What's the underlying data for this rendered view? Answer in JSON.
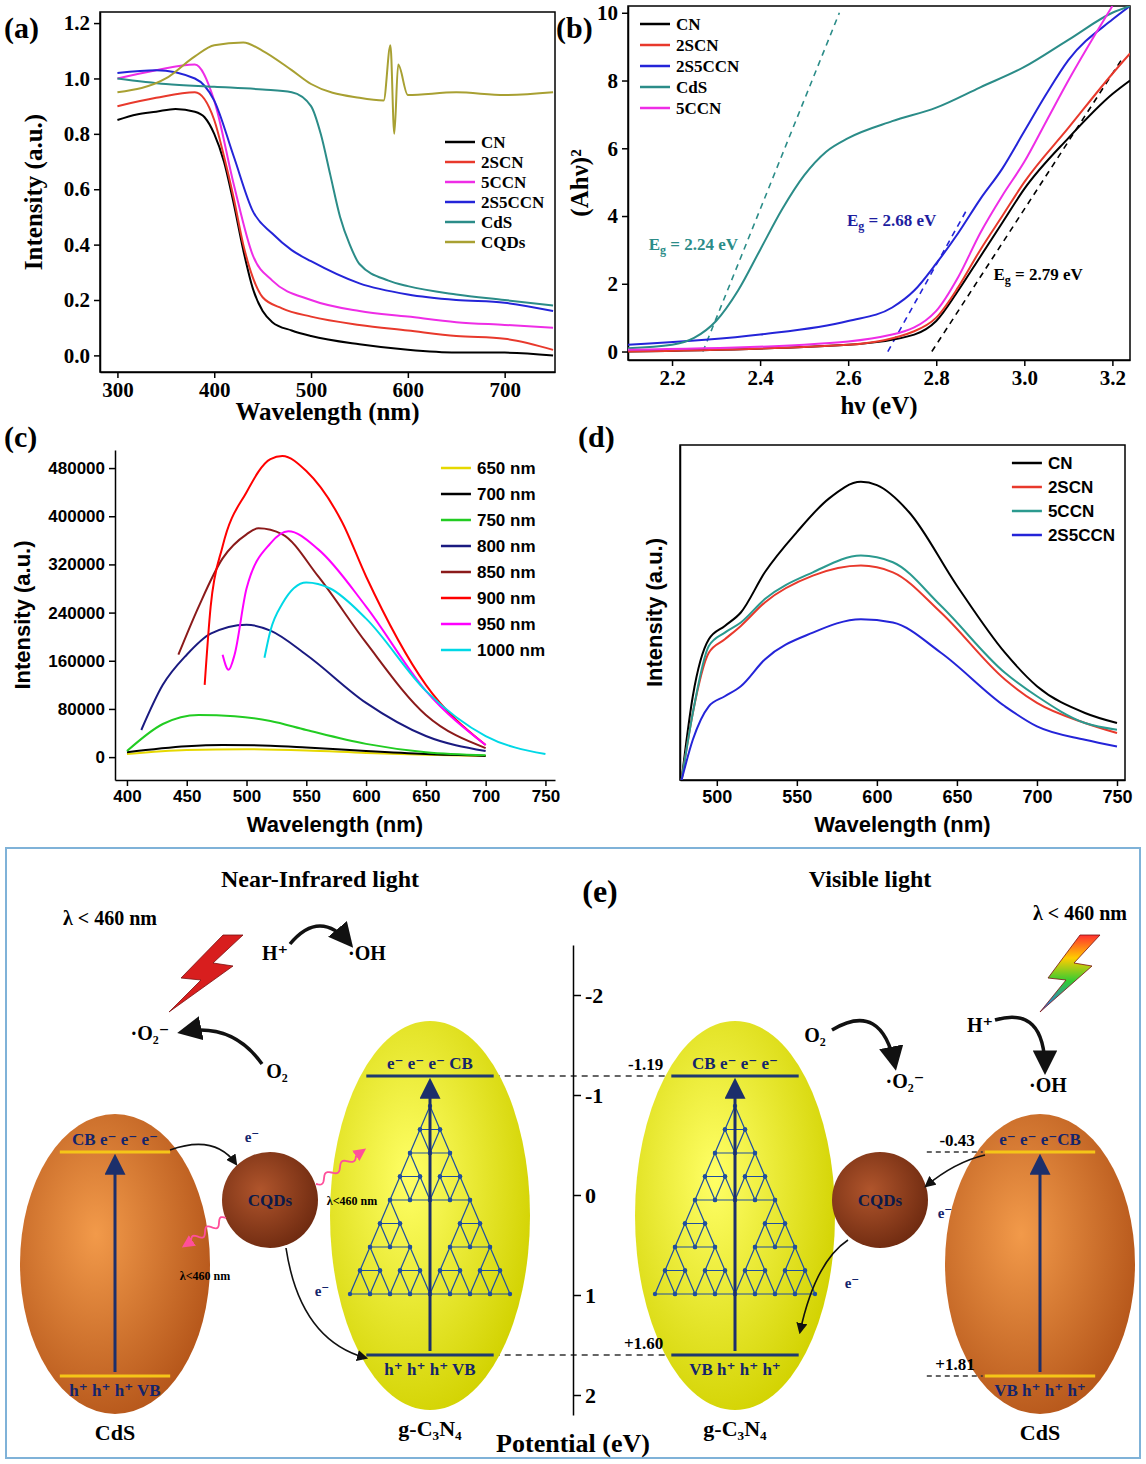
{
  "chart_data": [
    {
      "type": "line",
      "title": "(a)",
      "x_label": "Wavelength (nm)",
      "y_label": "Intensity (a.u.)",
      "xlim": [
        282,
        752
      ],
      "xticks": [
        300,
        400,
        500,
        600,
        700
      ],
      "ylim": [
        -0.06,
        1.24
      ],
      "yticks": [
        {
          "value": 0,
          "label": "0.0"
        },
        0.2,
        0.4,
        0.6,
        0.8,
        {
          "value": 1,
          "label": "1.0"
        },
        1.2
      ],
      "legend": "right",
      "series": [
        {
          "name": "CN",
          "color": "#000000",
          "x": [
            300,
            320,
            340,
            360,
            380,
            390,
            400,
            410,
            420,
            430,
            440,
            450,
            460,
            480,
            500,
            550,
            600,
            650,
            700,
            750
          ],
          "values": [
            0.85,
            0.87,
            0.88,
            0.89,
            0.88,
            0.86,
            0.8,
            0.7,
            0.55,
            0.38,
            0.24,
            0.16,
            0.12,
            0.09,
            0.07,
            0.04,
            0.02,
            0.01,
            0.01,
            0.0
          ]
        },
        {
          "name": "2SCN",
          "color": "#e8392c",
          "x": [
            300,
            340,
            380,
            400,
            410,
            420,
            430,
            440,
            450,
            470,
            500,
            550,
            600,
            650,
            700,
            750
          ],
          "values": [
            0.9,
            0.93,
            0.95,
            0.85,
            0.72,
            0.57,
            0.4,
            0.28,
            0.21,
            0.17,
            0.14,
            0.11,
            0.09,
            0.07,
            0.06,
            0.02
          ]
        },
        {
          "name": "5CCN",
          "color": "#ee2de6",
          "x": [
            300,
            340,
            380,
            400,
            420,
            440,
            460,
            500,
            550,
            600,
            650,
            700,
            750
          ],
          "values": [
            1.0,
            1.03,
            1.05,
            0.92,
            0.62,
            0.36,
            0.27,
            0.2,
            0.16,
            0.14,
            0.12,
            0.11,
            0.1
          ]
        },
        {
          "name": "2S5CCN",
          "color": "#2424d8",
          "x": [
            300,
            340,
            380,
            400,
            420,
            440,
            460,
            480,
            500,
            550,
            600,
            650,
            700,
            750
          ],
          "values": [
            1.02,
            1.03,
            1.0,
            0.92,
            0.72,
            0.52,
            0.44,
            0.38,
            0.34,
            0.26,
            0.22,
            0.2,
            0.19,
            0.16
          ]
        },
        {
          "name": "CdS",
          "color": "#2b8c88",
          "x": [
            300,
            350,
            400,
            450,
            480,
            500,
            510,
            520,
            530,
            540,
            550,
            580,
            600,
            650,
            700,
            750
          ],
          "values": [
            1.0,
            0.98,
            0.97,
            0.96,
            0.95,
            0.9,
            0.8,
            0.65,
            0.5,
            0.4,
            0.33,
            0.27,
            0.25,
            0.22,
            0.2,
            0.18
          ]
        },
        {
          "name": "CQDs",
          "color": "#a8a032",
          "x": [
            300,
            350,
            380,
            400,
            430,
            450,
            480,
            500,
            550,
            575,
            582,
            586,
            590,
            600,
            650,
            700,
            750
          ],
          "values": [
            0.95,
            1.0,
            1.08,
            1.12,
            1.13,
            1.1,
            1.03,
            0.98,
            0.93,
            0.92,
            1.12,
            0.8,
            1.05,
            0.94,
            0.95,
            0.94,
            0.95
          ]
        }
      ]
    },
    {
      "type": "line",
      "title": "(b)",
      "x_label": "hν (eV)",
      "y_label": "(Ahν)²",
      "xlim": [
        2.1,
        3.24
      ],
      "xticks": [
        2.2,
        2.4,
        2.6,
        2.8,
        {
          "value": 3,
          "label": "3.0"
        },
        3.2
      ],
      "ylim": [
        -0.25,
        10.2
      ],
      "yticks": [
        0,
        2,
        4,
        6,
        8,
        10
      ],
      "legend": "upper left",
      "series": [
        {
          "name": "CN",
          "color": "#000000",
          "x": [
            2.1,
            2.6,
            2.75,
            2.8,
            2.85,
            2.9,
            2.95,
            3.0,
            3.1,
            3.2,
            3.24
          ],
          "values": [
            0.0,
            0.2,
            0.5,
            0.9,
            1.8,
            2.8,
            3.8,
            4.8,
            6.3,
            7.6,
            8.0
          ]
        },
        {
          "name": "2SCN",
          "color": "#e8392c",
          "x": [
            2.1,
            2.6,
            2.75,
            2.8,
            2.85,
            2.9,
            2.95,
            3.0,
            3.1,
            3.2,
            3.24
          ],
          "values": [
            0.0,
            0.2,
            0.6,
            1.0,
            1.9,
            3.0,
            4.0,
            5.0,
            6.6,
            8.2,
            8.8
          ]
        },
        {
          "name": "2S5CCN",
          "color": "#2424d8",
          "x": [
            2.1,
            2.4,
            2.6,
            2.7,
            2.75,
            2.8,
            2.85,
            2.9,
            2.95,
            3.0,
            3.05,
            3.1,
            3.2,
            3.24
          ],
          "values": [
            0.2,
            0.5,
            0.9,
            1.3,
            1.8,
            2.6,
            3.5,
            4.5,
            5.4,
            6.5,
            7.6,
            8.6,
            9.8,
            10.2
          ]
        },
        {
          "name": "CdS",
          "color": "#2b8c88",
          "x": [
            2.1,
            2.2,
            2.25,
            2.3,
            2.35,
            2.4,
            2.45,
            2.5,
            2.55,
            2.6,
            2.7,
            2.8,
            2.9,
            3.0,
            3.1,
            3.2,
            3.24
          ],
          "values": [
            0.1,
            0.2,
            0.4,
            0.9,
            1.8,
            3.0,
            4.2,
            5.2,
            5.9,
            6.3,
            6.8,
            7.2,
            7.8,
            8.4,
            9.2,
            10.0,
            10.2
          ]
        },
        {
          "name": "5CCN",
          "color": "#ee2de6",
          "x": [
            2.1,
            2.5,
            2.7,
            2.8,
            2.85,
            2.9,
            2.95,
            3.0,
            3.05,
            3.1,
            3.2
          ],
          "values": [
            0.05,
            0.2,
            0.5,
            1.2,
            2.2,
            3.5,
            4.6,
            5.6,
            6.8,
            8.0,
            10.2
          ]
        }
      ],
      "fits": [
        {
          "color": "#2b8c88",
          "line_style": "dashed",
          "x": [
            2.27,
            2.58
          ],
          "values": [
            0,
            10
          ]
        },
        {
          "color": "#2424d8",
          "line_style": "dashed",
          "x": [
            2.69,
            2.87
          ],
          "values": [
            0,
            4.2
          ]
        },
        {
          "color": "#000000",
          "line_style": "dashed",
          "x": [
            2.79,
            3.22
          ],
          "values": [
            0,
            8.6
          ]
        }
      ],
      "annotations": [
        {
          "text": "Eg = 2.24 eV",
          "color": "#2b8c88"
        },
        {
          "text": "Eg = 2.68 eV",
          "color": "#1e1ea0"
        },
        {
          "text": "Eg = 2.79 eV",
          "color": "#000000"
        }
      ]
    },
    {
      "type": "line",
      "title": "(c)",
      "x_label": "Wavelength (nm)",
      "y_label": "Intensity (a.u.)",
      "xlim": [
        390,
        758
      ],
      "xticks": [
        400,
        450,
        500,
        550,
        600,
        650,
        700,
        750
      ],
      "ylim": [
        -38000,
        510000
      ],
      "yticks": [
        0,
        80000,
        160000,
        240000,
        320000,
        400000,
        480000
      ],
      "legend": "upper right",
      "series": [
        {
          "name": "650 nm",
          "color": "#e6d800",
          "x": [
            400,
            450,
            500,
            550,
            600,
            650,
            700
          ],
          "values": [
            5000,
            12000,
            13000,
            11000,
            7000,
            4000,
            2000
          ]
        },
        {
          "name": "700 nm",
          "color": "#000000",
          "x": [
            400,
            450,
            480,
            520,
            550,
            600,
            650,
            700
          ],
          "values": [
            8000,
            18000,
            20000,
            19000,
            16000,
            10000,
            5000,
            2000
          ]
        },
        {
          "name": "750 nm",
          "color": "#22cc22",
          "x": [
            400,
            430,
            460,
            490,
            520,
            550,
            600,
            650,
            700
          ],
          "values": [
            10000,
            55000,
            70000,
            68000,
            60000,
            45000,
            22000,
            8000,
            3000
          ]
        },
        {
          "name": "800 nm",
          "color": "#1a1a80",
          "x": [
            412,
            430,
            450,
            470,
            500,
            520,
            550,
            600,
            650,
            700
          ],
          "values": [
            45000,
            120000,
            170000,
            205000,
            220000,
            210000,
            170000,
            90000,
            35000,
            10000
          ]
        },
        {
          "name": "850 nm",
          "color": "#8b1a1a",
          "x": [
            443,
            460,
            480,
            500,
            510,
            530,
            560,
            600,
            650,
            700
          ],
          "values": [
            170000,
            250000,
            330000,
            370000,
            380000,
            370000,
            300000,
            190000,
            70000,
            15000
          ]
        },
        {
          "name": "900 nm",
          "color": "#ff0000",
          "x": [
            465,
            470,
            480,
            500,
            520,
            530,
            550,
            580,
            600,
            650,
            700
          ],
          "values": [
            120000,
            250000,
            350000,
            440000,
            495000,
            500000,
            475000,
            390000,
            300000,
            120000,
            20000
          ]
        },
        {
          "name": "950 nm",
          "color": "#ff00ff",
          "x": [
            480,
            485,
            490,
            500,
            520,
            535,
            560,
            600,
            650,
            700
          ],
          "values": [
            170000,
            145000,
            170000,
            280000,
            355000,
            375000,
            345000,
            250000,
            110000,
            20000
          ]
        },
        {
          "name": "1000 nm",
          "color": "#00d8e6",
          "x": [
            515,
            520,
            530,
            550,
            570,
            600,
            650,
            700,
            750
          ],
          "values": [
            165000,
            210000,
            255000,
            290000,
            280000,
            230000,
            110000,
            35000,
            5000
          ]
        }
      ]
    },
    {
      "type": "line",
      "title": "(d)",
      "x_label": "Wavelength (nm)",
      "y_label": "Intensity (a.u.)",
      "xlim": [
        477,
        755
      ],
      "xticks": [
        500,
        550,
        600,
        650,
        700,
        750
      ],
      "ylim": [
        0,
        1
      ],
      "tick_labels": "x",
      "legend": "upper right",
      "series": [
        {
          "name": "CN",
          "color": "#000000",
          "x": [
            478,
            485,
            495,
            505,
            515,
            530,
            550,
            570,
            590,
            600,
            620,
            650,
            680,
            700,
            730,
            750
          ],
          "values": [
            0.0,
            0.25,
            0.42,
            0.46,
            0.5,
            0.62,
            0.74,
            0.84,
            0.89,
            0.88,
            0.8,
            0.58,
            0.38,
            0.28,
            0.2,
            0.17
          ]
        },
        {
          "name": "2SCN",
          "color": "#e8392c",
          "x": [
            478,
            485,
            495,
            505,
            515,
            530,
            560,
            590,
            610,
            640,
            680,
            700,
            730,
            750
          ],
          "values": [
            0.0,
            0.2,
            0.38,
            0.42,
            0.46,
            0.53,
            0.61,
            0.64,
            0.62,
            0.5,
            0.3,
            0.23,
            0.17,
            0.14
          ]
        },
        {
          "name": "5CCN",
          "color": "#2b9a8f",
          "x": [
            478,
            485,
            495,
            505,
            515,
            530,
            560,
            590,
            610,
            640,
            680,
            700,
            730,
            750
          ],
          "values": [
            0.0,
            0.2,
            0.4,
            0.44,
            0.47,
            0.54,
            0.62,
            0.67,
            0.65,
            0.52,
            0.32,
            0.25,
            0.17,
            0.15
          ]
        },
        {
          "name": "2S5CCN",
          "color": "#2424d8",
          "x": [
            478,
            485,
            495,
            505,
            515,
            530,
            560,
            590,
            610,
            640,
            680,
            700,
            730,
            750
          ],
          "values": [
            0.0,
            0.12,
            0.22,
            0.25,
            0.28,
            0.36,
            0.44,
            0.48,
            0.47,
            0.38,
            0.22,
            0.16,
            0.12,
            0.1
          ]
        }
      ]
    }
  ],
  "diagram": {
    "label": "(e)",
    "axis": {
      "title": "Potential (eV)",
      "ylim": [
        -2.5,
        2.2
      ],
      "yticks": [
        -2,
        -1,
        0,
        1,
        2
      ]
    },
    "levels": {
      "cn_cb": -1.19,
      "cn_vb": {
        "value": 1.6,
        "label": "+1.60"
      },
      "cds_cb": -0.43,
      "cds_vb": {
        "value": 1.81,
        "label": "+1.81"
      }
    },
    "panels": [
      {
        "title": "Near-Infrared light",
        "light": "λ < 460 nm",
        "cn": "g-C₃N₄",
        "cds": "CdS",
        "cqds": "CQDs",
        "cn_cb": "e⁻ e⁻ e⁻ CB",
        "cn_vb": "h⁺ h⁺ h⁺ VB",
        "cds_cb": "CB e⁻ e⁻ e⁻",
        "cds_vb": "h⁺ h⁺ h⁺ VB",
        "species": {
          "h": "H⁺",
          "oh": "·OH",
          "o2r": "·O₂⁻",
          "o2": "O₂"
        },
        "electrons": [
          "e⁻",
          "e⁻"
        ],
        "waves": [
          "λ<460 nm",
          "λ<460 nm"
        ]
      },
      {
        "title": "Visible light",
        "light": "λ < 460 nm",
        "cn": "g-C₃N₄",
        "cds": "CdS",
        "cqds": "CQDs",
        "cn_cb": "CB e⁻ e⁻ e⁻",
        "cn_vb": "VB h⁺ h⁺ h⁺",
        "cds_cb": "e⁻ e⁻ e⁻CB",
        "cds_vb": "VB h⁺ h⁺ h⁺",
        "species": {
          "h": "H⁺",
          "oh": "·OH",
          "o2r": "·O₂⁻",
          "o2": "O₂"
        },
        "electrons": [
          "e⁻",
          "e⁻"
        ]
      }
    ]
  }
}
